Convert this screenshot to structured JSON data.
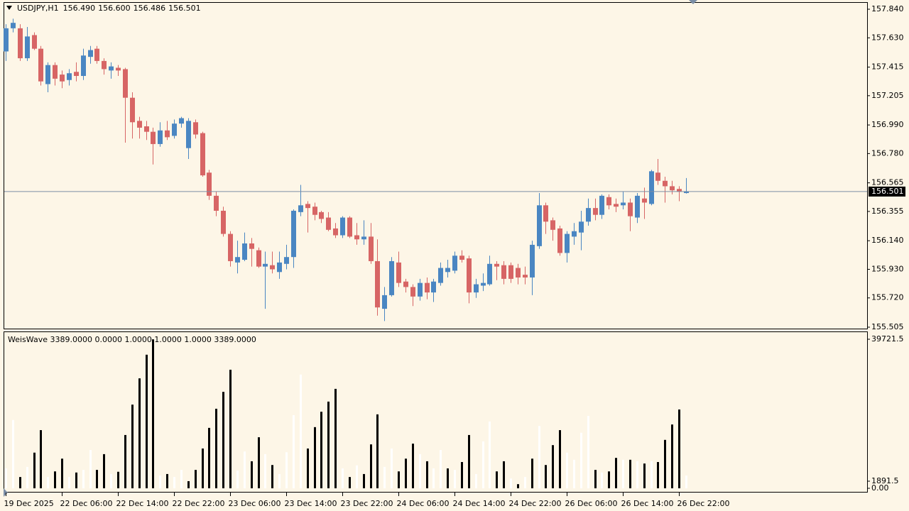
{
  "chart_data": [
    {
      "type": "candlestick",
      "title": "USDJPY,H1",
      "header_values": [
        "156.490",
        "156.600",
        "156.486",
        "156.501"
      ],
      "categories": [
        "19 Dec 2025",
        null,
        null,
        null,
        null,
        null,
        null,
        null,
        "22 Dec 06:00",
        null,
        null,
        null,
        null,
        null,
        null,
        null,
        "22 Dec 14:00",
        null,
        null,
        null,
        null,
        null,
        null,
        null,
        "22 Dec 22:00",
        null,
        null,
        null,
        null,
        null,
        null,
        null,
        "23 Dec 06:00",
        null,
        null,
        null,
        null,
        null,
        null,
        null,
        "23 Dec 14:00",
        null,
        null,
        null,
        null,
        null,
        null,
        null,
        "23 Dec 22:00",
        null,
        null,
        null,
        null,
        null,
        null,
        null,
        "24 Dec 06:00",
        null,
        null,
        null,
        null,
        null,
        null,
        null,
        "24 Dec 14:00",
        null,
        null,
        null,
        null,
        null,
        null,
        null,
        "24 Dec 22:00",
        null,
        null,
        null,
        null,
        null,
        null,
        null,
        "26 Dec 06:00",
        null,
        null,
        null,
        null,
        null,
        null,
        null,
        "26 Dec 14:00",
        null,
        null,
        null,
        null,
        null,
        null,
        null,
        "26 Dec 22:00",
        null
      ],
      "open": [
        157.53,
        157.7,
        157.7,
        157.48,
        157.65,
        157.55,
        157.29,
        157.43,
        157.36,
        157.32,
        157.38,
        157.35,
        157.49,
        157.55,
        157.46,
        157.39,
        157.41,
        157.4,
        157.19,
        157.02,
        156.98,
        156.94,
        156.85,
        156.95,
        156.91,
        157.0,
        156.82,
        157.01,
        156.93,
        156.64,
        156.47,
        156.36,
        156.19,
        155.98,
        156.0,
        156.12,
        156.07,
        155.95,
        155.96,
        155.91,
        155.97,
        156.02,
        156.35,
        156.41,
        156.39,
        156.35,
        156.31,
        156.23,
        156.18,
        156.31,
        156.18,
        156.15,
        156.17,
        155.99,
        155.64,
        155.74,
        155.98,
        155.84,
        155.8,
        155.73,
        155.83,
        155.76,
        155.83,
        155.91,
        155.92,
        156.03,
        156.01,
        155.76,
        155.81,
        155.82,
        155.97,
        155.96,
        155.96,
        155.94,
        155.89,
        155.87,
        156.1,
        156.4,
        156.29,
        156.23,
        156.05,
        156.17,
        156.2,
        156.28,
        156.38,
        156.33,
        156.46,
        156.41,
        156.4,
        156.42,
        156.31,
        156.45,
        156.41,
        156.64,
        156.58,
        156.54,
        156.52,
        156.49
      ],
      "high": [
        157.73,
        157.77,
        157.73,
        157.71,
        157.67,
        157.57,
        157.45,
        157.45,
        157.39,
        157.4,
        157.45,
        157.55,
        157.57,
        157.57,
        157.48,
        157.45,
        157.43,
        157.41,
        157.23,
        157.05,
        157.02,
        156.97,
        157.01,
        157.02,
        157.03,
        157.05,
        157.04,
        157.03,
        156.94,
        156.66,
        156.5,
        156.39,
        156.21,
        156.14,
        156.2,
        156.16,
        156.09,
        156.06,
        156.06,
        156.06,
        156.11,
        156.37,
        156.55,
        156.43,
        156.42,
        156.36,
        156.35,
        156.27,
        156.32,
        156.32,
        156.27,
        156.29,
        156.27,
        156.15,
        155.8,
        156.02,
        156.06,
        155.86,
        155.82,
        155.86,
        155.87,
        155.86,
        155.98,
        156.0,
        156.06,
        156.07,
        156.03,
        155.86,
        155.9,
        156.03,
        155.99,
        155.99,
        155.98,
        155.97,
        155.95,
        156.14,
        156.49,
        156.42,
        156.31,
        156.25,
        156.21,
        156.27,
        156.36,
        156.45,
        156.45,
        156.48,
        156.48,
        156.45,
        156.5,
        156.45,
        156.49,
        156.53,
        156.66,
        156.74,
        156.61,
        156.58,
        156.54,
        156.6
      ],
      "low": [
        157.46,
        157.67,
        157.46,
        157.46,
        157.54,
        157.28,
        157.23,
        157.28,
        157.26,
        157.28,
        157.31,
        157.32,
        157.44,
        157.44,
        157.36,
        157.33,
        157.35,
        156.86,
        156.89,
        156.89,
        156.88,
        156.7,
        156.83,
        156.88,
        156.89,
        156.97,
        156.74,
        156.89,
        156.61,
        156.44,
        156.32,
        156.17,
        155.95,
        155.9,
        155.99,
        155.95,
        155.94,
        155.64,
        155.9,
        155.86,
        155.93,
        155.94,
        156.32,
        156.2,
        156.29,
        156.27,
        156.21,
        156.16,
        156.16,
        156.16,
        156.11,
        156.11,
        155.97,
        155.59,
        155.55,
        155.73,
        155.8,
        155.76,
        155.66,
        155.7,
        155.71,
        155.69,
        155.81,
        155.87,
        155.9,
        155.98,
        155.68,
        155.72,
        155.77,
        155.81,
        155.85,
        155.82,
        155.83,
        155.82,
        155.82,
        155.74,
        156.08,
        156.19,
        156.14,
        156.03,
        155.98,
        156.11,
        156.07,
        156.25,
        156.29,
        156.3,
        156.37,
        156.35,
        156.37,
        156.21,
        156.27,
        156.3,
        156.4,
        156.55,
        156.42,
        156.48,
        156.43,
        156.486
      ],
      "close": [
        157.7,
        157.74,
        157.48,
        157.64,
        157.55,
        157.31,
        157.43,
        157.33,
        157.31,
        157.37,
        157.35,
        157.5,
        157.54,
        157.46,
        157.4,
        157.42,
        157.39,
        157.19,
        157.01,
        156.97,
        156.94,
        156.85,
        156.95,
        156.9,
        157.0,
        157.04,
        157.02,
        156.92,
        156.62,
        156.47,
        156.36,
        156.19,
        155.99,
        156.02,
        156.12,
        156.08,
        155.95,
        155.97,
        155.93,
        155.98,
        156.02,
        156.36,
        156.4,
        156.38,
        156.33,
        156.3,
        156.22,
        156.18,
        156.31,
        156.17,
        156.15,
        156.17,
        155.99,
        155.65,
        155.74,
        155.99,
        155.83,
        155.8,
        155.73,
        155.83,
        155.76,
        155.84,
        155.94,
        155.94,
        156.03,
        156.0,
        155.76,
        155.82,
        155.83,
        155.97,
        155.95,
        155.86,
        155.86,
        155.87,
        155.87,
        156.11,
        156.4,
        156.28,
        156.22,
        156.05,
        156.19,
        156.21,
        156.28,
        156.38,
        156.33,
        156.47,
        156.4,
        156.39,
        156.42,
        156.32,
        156.47,
        156.42,
        156.65,
        156.58,
        156.54,
        156.51,
        156.5,
        156.501
      ],
      "up_color": "#4a86c2",
      "down_color": "#d76565",
      "ylim": [
        155.505,
        157.84
      ],
      "yticks": [
        {
          "value": 157.84,
          "label": "157.840"
        },
        {
          "value": 157.63,
          "label": "157.630"
        },
        157.415,
        157.205,
        {
          "value": 156.99,
          "label": "156.990"
        },
        {
          "value": 156.78,
          "label": "156.780"
        },
        156.565,
        156.355,
        {
          "value": 156.14,
          "label": "156.140"
        },
        {
          "value": 155.93,
          "label": "155.930"
        },
        {
          "value": 155.72,
          "label": "155.720"
        },
        155.505
      ],
      "last_price": {
        "value": 156.501,
        "label": "156.501"
      }
    },
    {
      "type": "bar",
      "title": "WeisWave 3389.0000 0.0000 1.0000 1.0000 1.0000 3389.0000",
      "values": [
        5300,
        18200,
        3000,
        5700,
        9500,
        15500,
        3000,
        4500,
        7900,
        3000,
        4200,
        4900,
        10200,
        4900,
        9100,
        3800,
        4400,
        14200,
        22300,
        29300,
        35600,
        39700,
        3400,
        3800,
        3000,
        4900,
        1900,
        4900,
        10600,
        16100,
        21200,
        25700,
        31600,
        4700,
        9800,
        7200,
        13600,
        9100,
        6200,
        3800,
        9600,
        19500,
        30300,
        10600,
        16300,
        20400,
        23100,
        26500,
        5300,
        3000,
        6100,
        3800,
        11700,
        19700,
        5700,
        10600,
        4500,
        7900,
        11900,
        9100,
        7200,
        5300,
        10200,
        5300,
        4900,
        7000,
        14200,
        3800,
        12500,
        17800,
        4500,
        7200,
        2600,
        1100,
        3000,
        7900,
        16600,
        6200,
        11500,
        15500,
        9500,
        7600,
        14800,
        19300,
        4900,
        4200,
        4500,
        8100,
        7600,
        7600,
        7200,
        6600,
        7200,
        7000,
        12900,
        17000,
        21000,
        3389
      ],
      "colors": [
        "#fff",
        "#fff",
        "#000",
        "#fff",
        "#000",
        "#000",
        "#fff",
        "#000",
        "#000",
        "#fff",
        "#000",
        "#fff",
        "#fff",
        "#000",
        "#000",
        "#fff",
        "#000",
        "#000",
        "#000",
        "#000",
        "#000",
        "#000",
        "#fff",
        "#000",
        "#fff",
        "#fff",
        "#000",
        "#000",
        "#000",
        "#000",
        "#000",
        "#000",
        "#000",
        "#fff",
        "#fff",
        "#000",
        "#000",
        "#fff",
        "#000",
        "#fff",
        "#fff",
        "#fff",
        "#fff",
        "#000",
        "#000",
        "#000",
        "#000",
        "#000",
        "#fff",
        "#000",
        "#fff",
        "#000",
        "#000",
        "#000",
        "#fff",
        "#fff",
        "#000",
        "#000",
        "#000",
        "#fff",
        "#000",
        "#fff",
        "#fff",
        "#000",
        "#fff",
        "#000",
        "#000",
        "#fff",
        "#fff",
        "#fff",
        "#000",
        "#000",
        "#fff",
        "#000",
        "#fff",
        "#000",
        "#fff",
        "#000",
        "#000",
        "#000",
        "#fff",
        "#fff",
        "#fff",
        "#fff",
        "#000",
        "#fff",
        "#000",
        "#000",
        "#fff",
        "#000",
        "#fff",
        "#000",
        "#fff",
        "#000",
        "#000",
        "#000",
        "#000",
        "#fff"
      ],
      "ylim": [
        0,
        39721.5
      ],
      "yticks": [
        39721.5,
        {
          "value": 0,
          "label": "0.00"
        },
        1891.5
      ]
    }
  ]
}
